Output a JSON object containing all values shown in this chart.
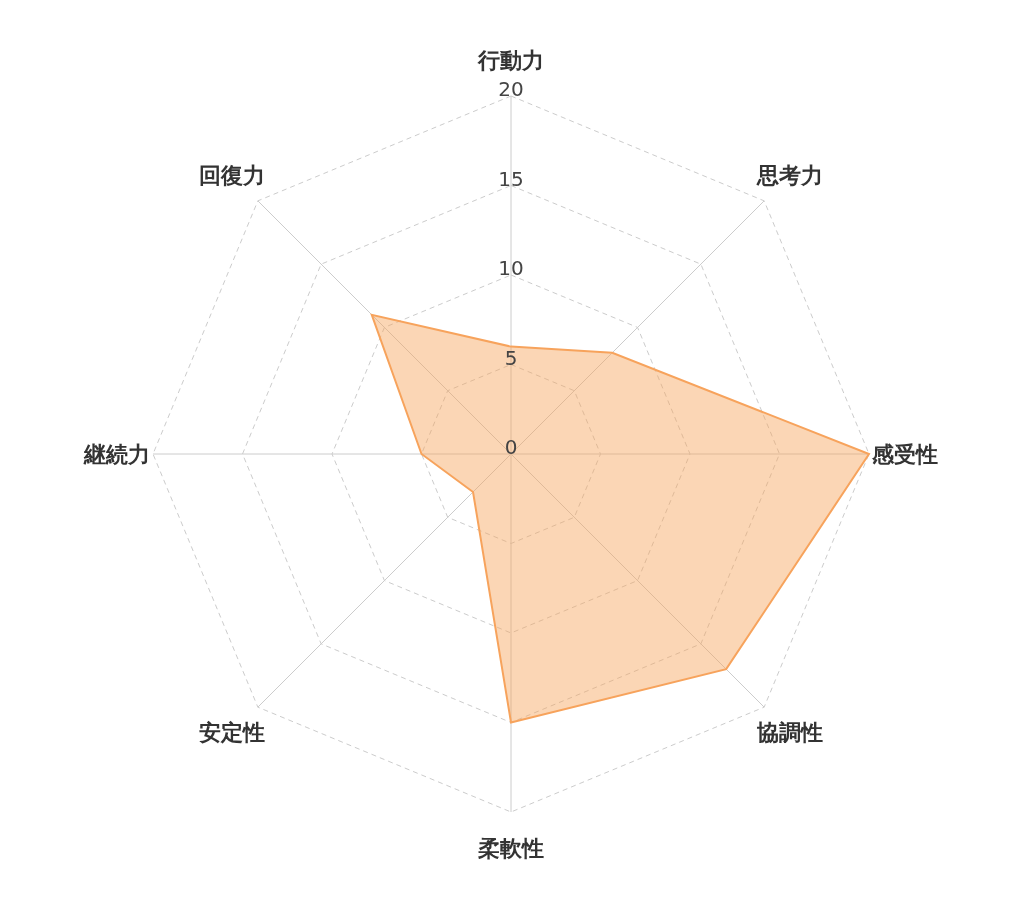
{
  "chart_data": {
    "type": "radar",
    "categories": [
      "行動力",
      "思考力",
      "感受性",
      "協調性",
      "柔軟性",
      "安定性",
      "継続力",
      "回復力"
    ],
    "series": [
      {
        "color": "#f7a35c",
        "values": [
          6,
          8,
          20,
          17,
          15,
          3,
          5,
          11
        ]
      }
    ],
    "ylim": [
      0,
      20
    ],
    "yticks": [
      0,
      5,
      10,
      15,
      20
    ],
    "grid": true
  }
}
